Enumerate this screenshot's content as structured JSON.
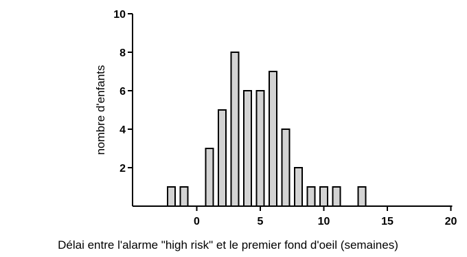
{
  "chart_data": {
    "type": "bar",
    "xlabel": "Délai entre l'alarme \"high risk\" et le premier fond d'oeil (semaines)",
    "ylabel": "nombre d'enfants",
    "xlim": [
      -2.5,
      20
    ],
    "ylim": [
      0,
      10
    ],
    "x_ticks": [
      0,
      5,
      10,
      15,
      20
    ],
    "y_ticks": [
      2,
      4,
      6,
      8,
      10
    ],
    "grid": false,
    "bar_color": "#d3d3d3",
    "bars": [
      {
        "x": -2,
        "value": 1
      },
      {
        "x": -1,
        "value": 1
      },
      {
        "x": 1,
        "value": 3
      },
      {
        "x": 2,
        "value": 5
      },
      {
        "x": 3,
        "value": 8
      },
      {
        "x": 4,
        "value": 6
      },
      {
        "x": 5,
        "value": 6
      },
      {
        "x": 6,
        "value": 7
      },
      {
        "x": 7,
        "value": 4
      },
      {
        "x": 8,
        "value": 2
      },
      {
        "x": 9,
        "value": 1
      },
      {
        "x": 10,
        "value": 1
      },
      {
        "x": 11,
        "value": 1
      },
      {
        "x": 13,
        "value": 1
      }
    ]
  }
}
